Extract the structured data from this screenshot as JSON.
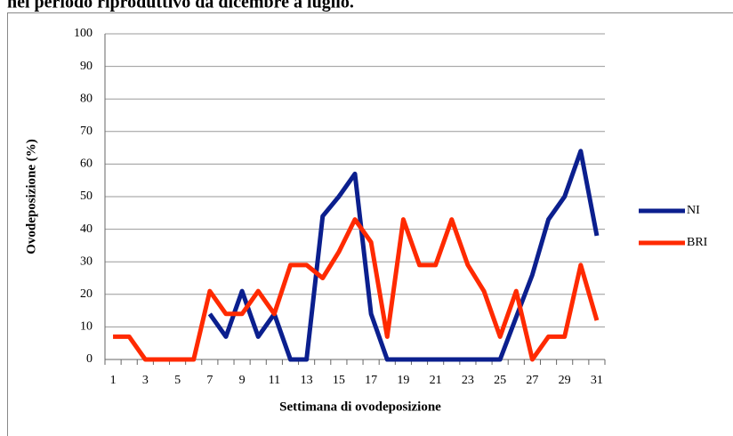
{
  "chart_data": {
    "type": "line",
    "title": "nel periodo riproduttivo da dicembre a luglio.",
    "xlabel": "Settimana di ovodeposizione",
    "ylabel": "Ovodeposizione (%)",
    "categories": [
      "1",
      null,
      "3",
      null,
      "5",
      null,
      "7",
      null,
      "9",
      null,
      "11",
      null,
      "13",
      null,
      "15",
      null,
      "17",
      null,
      "19",
      null,
      "21",
      null,
      "23",
      null,
      "25",
      null,
      "27",
      null,
      "29",
      null,
      "31"
    ],
    "series": [
      {
        "name": "NI",
        "color": "#0b1f8e",
        "values": [
          null,
          null,
          null,
          null,
          null,
          null,
          14,
          7,
          21,
          7,
          14,
          0,
          0,
          44,
          50,
          57,
          14,
          0,
          0,
          0,
          0,
          0,
          0,
          0,
          0,
          13,
          26,
          43,
          50,
          64,
          38
        ]
      },
      {
        "name": "BRI",
        "color": "#ff2a00",
        "values": [
          7,
          7,
          0,
          0,
          0,
          0,
          21,
          14,
          14,
          21,
          14,
          29,
          29,
          25,
          33,
          43,
          36,
          7,
          43,
          29,
          29,
          43,
          29,
          21,
          7,
          21,
          0,
          7,
          7,
          29,
          12
        ]
      }
    ],
    "ylim": [
      0,
      100
    ],
    "yticks": [
      0,
      10,
      20,
      30,
      40,
      50,
      60,
      70,
      80,
      90,
      100
    ],
    "grid": true,
    "legend": "right"
  }
}
